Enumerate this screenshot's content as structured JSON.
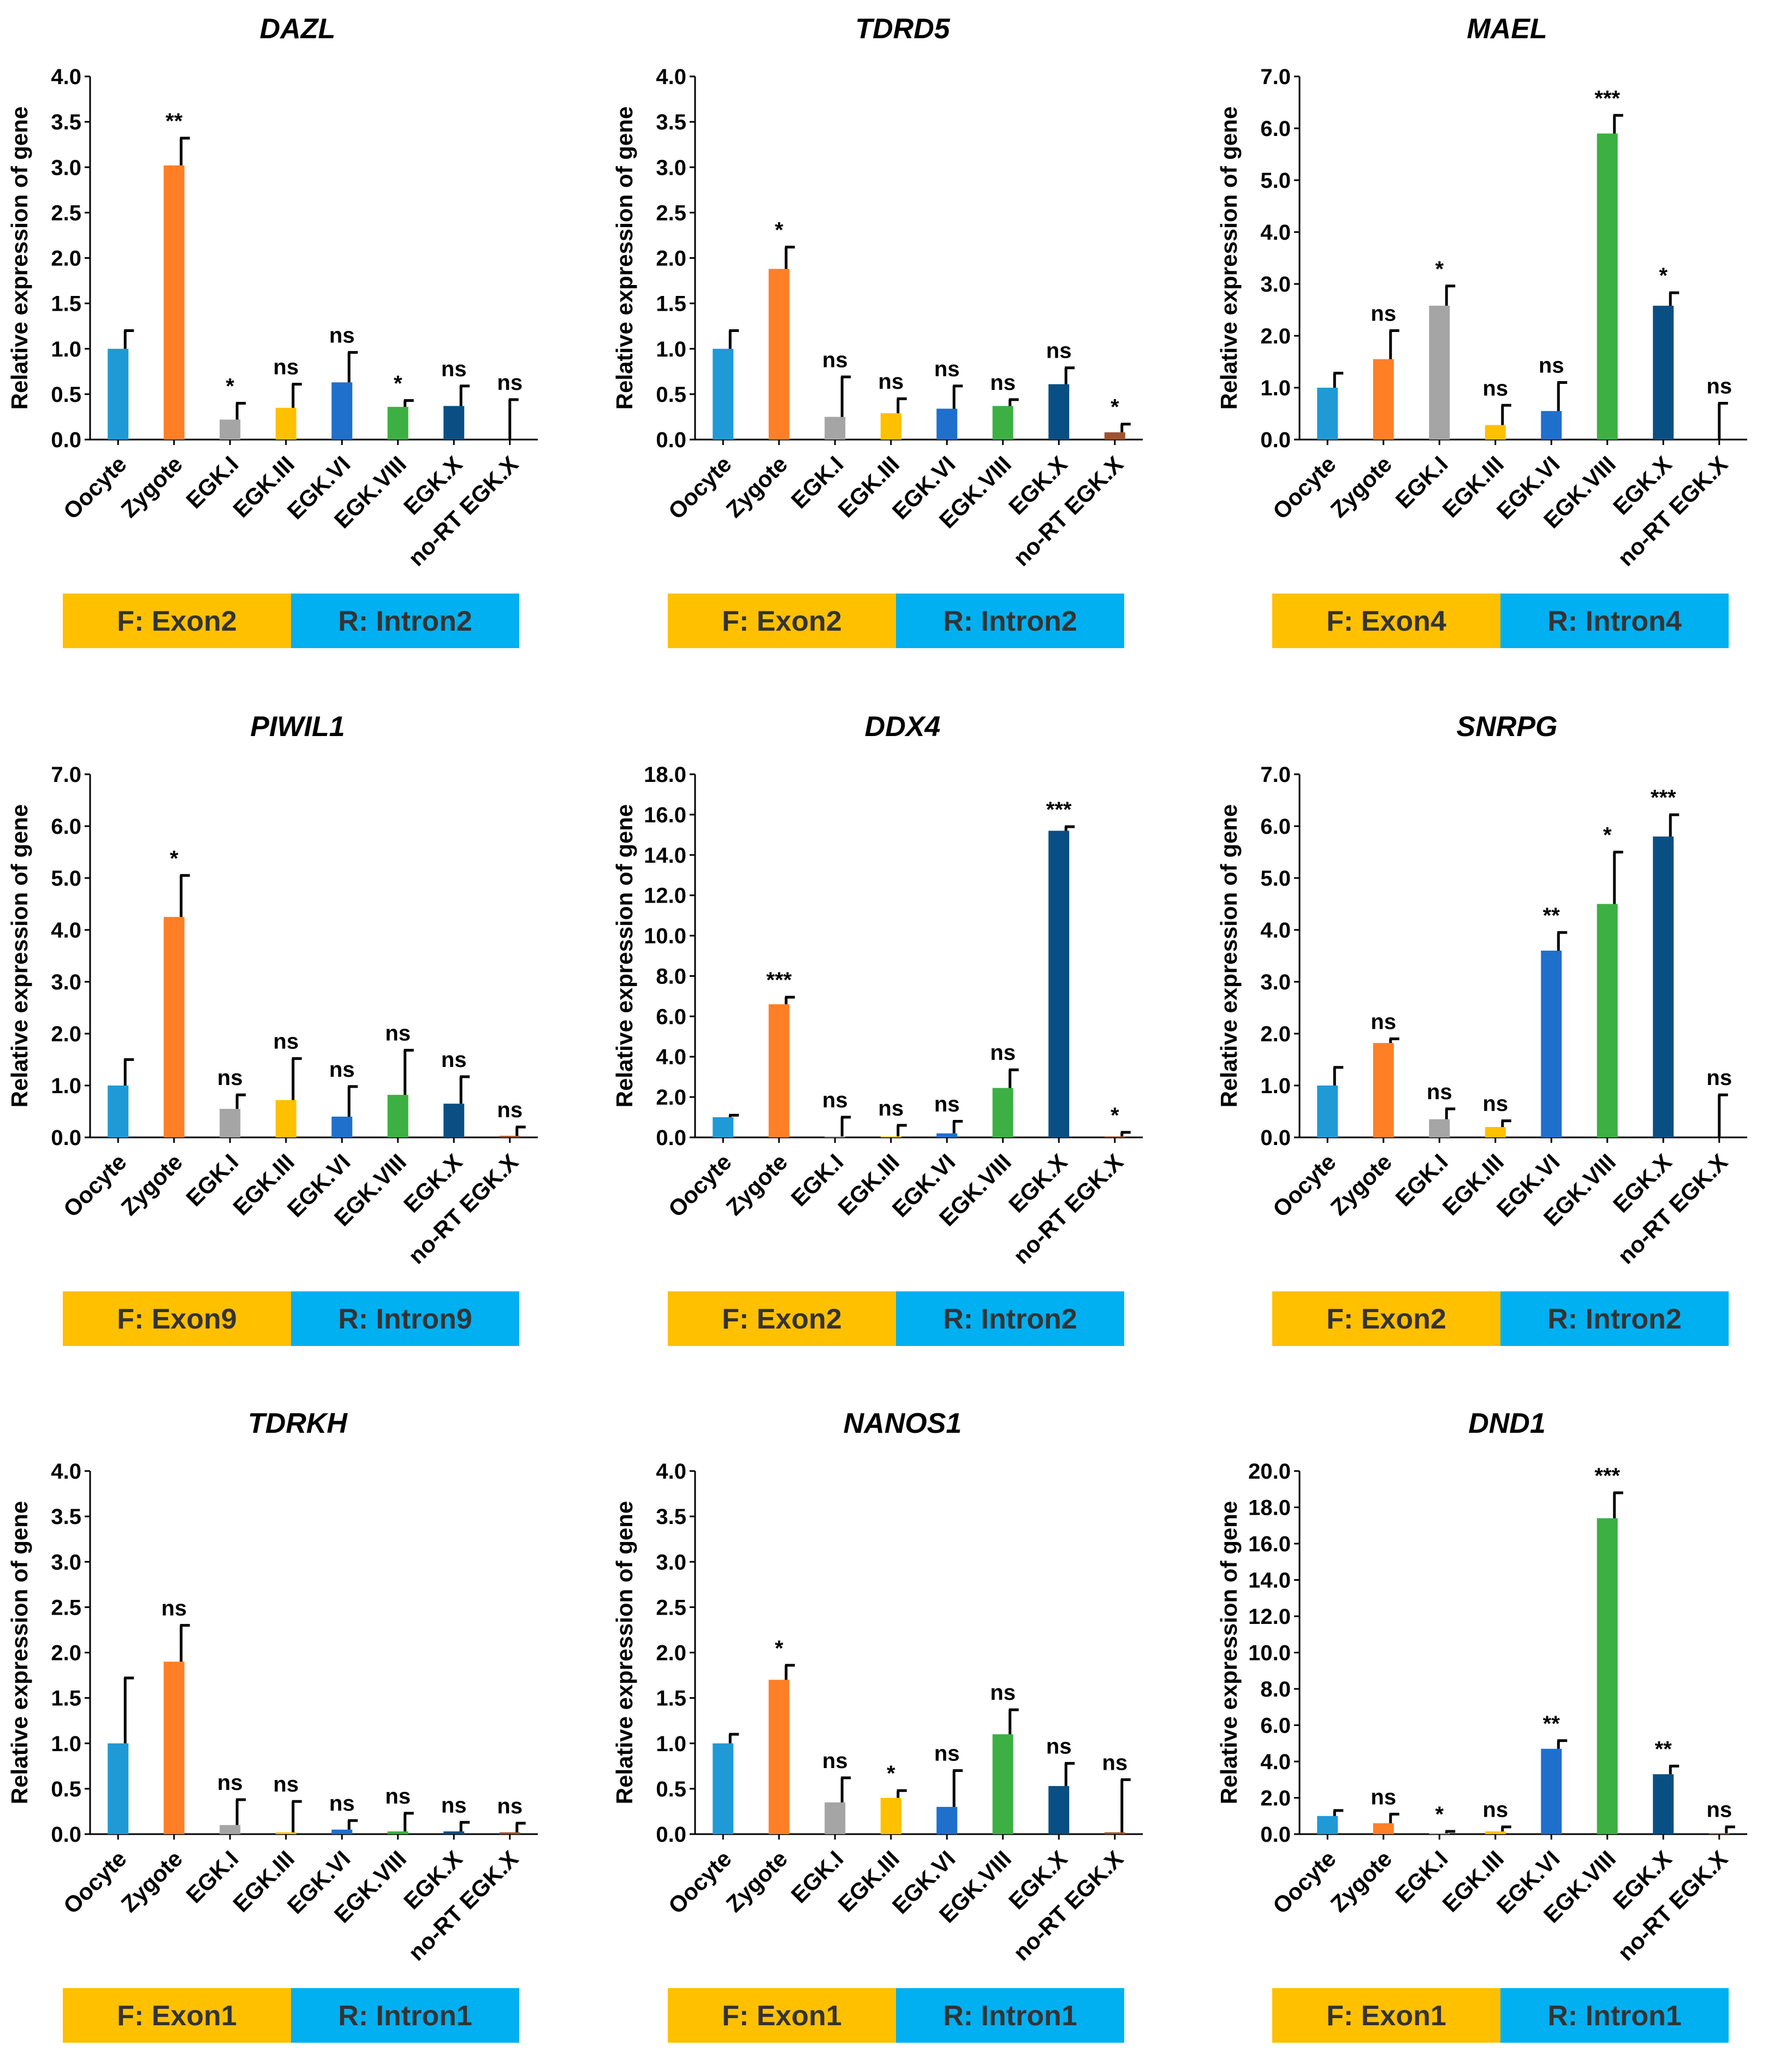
{
  "colors": {
    "Oocyte": "#1f9ad6",
    "Zygote": "#ff7f27",
    "EGK.I": "#a5a5a5",
    "EGK.III": "#ffc000",
    "EGK.VI": "#1f6fcc",
    "EGK.VIII": "#3cb043",
    "EGK.X": "#0a4f84",
    "no-RT EGK.X": "#a0522d",
    "forward": "#ffc000",
    "reverse": "#00b0f0"
  },
  "chart_data": [
    {
      "type": "bar",
      "title": "DAZL",
      "ylabel": "Relative expression of gene",
      "ylim": [
        0,
        4.0
      ],
      "yticks": [
        "0.0",
        "0.5",
        "1.0",
        "1.5",
        "2.0",
        "2.5",
        "3.0",
        "3.5",
        "4.0"
      ],
      "categories": [
        "Oocyte",
        "Zygote",
        "EGK.I",
        "EGK.III",
        "EGK.VI",
        "EGK.VIII",
        "EGK.X",
        "no-RT EGK.X"
      ],
      "values": [
        1.0,
        3.02,
        0.22,
        0.35,
        0.63,
        0.36,
        0.37,
        0.0
      ],
      "errors": [
        0.2,
        0.3,
        0.18,
        0.26,
        0.33,
        0.07,
        0.22,
        0.44
      ],
      "significance": [
        "",
        "**",
        "*",
        "ns",
        "ns",
        "*",
        "ns",
        "ns"
      ],
      "primer_forward": "F: Exon2",
      "primer_reverse": "R: Intron2"
    },
    {
      "type": "bar",
      "title": "TDRD5",
      "ylabel": "Relative expression of gene",
      "ylim": [
        0,
        4.0
      ],
      "yticks": [
        "0.0",
        "0.5",
        "1.0",
        "1.5",
        "2.0",
        "2.5",
        "3.0",
        "3.5",
        "4.0"
      ],
      "categories": [
        "Oocyte",
        "Zygote",
        "EGK.I",
        "EGK.III",
        "EGK.VI",
        "EGK.VIII",
        "EGK.X",
        "no-RT EGK.X"
      ],
      "values": [
        1.0,
        1.88,
        0.25,
        0.29,
        0.34,
        0.37,
        0.61,
        0.08
      ],
      "errors": [
        0.2,
        0.24,
        0.44,
        0.16,
        0.25,
        0.07,
        0.18,
        0.09
      ],
      "significance": [
        "",
        "*",
        "ns",
        "ns",
        "ns",
        "ns",
        "ns",
        "*"
      ],
      "primer_forward": "F: Exon2",
      "primer_reverse": "R: Intron2"
    },
    {
      "type": "bar",
      "title": "MAEL",
      "ylabel": "Relative expression of gene",
      "ylim": [
        0,
        7.0
      ],
      "yticks": [
        "0.0",
        "1.0",
        "2.0",
        "3.0",
        "4.0",
        "5.0",
        "6.0",
        "7.0"
      ],
      "categories": [
        "Oocyte",
        "Zygote",
        "EGK.I",
        "EGK.III",
        "EGK.VI",
        "EGK.VIII",
        "EGK.X",
        "no-RT EGK.X"
      ],
      "values": [
        1.0,
        1.55,
        2.58,
        0.28,
        0.55,
        5.9,
        2.58,
        0.0
      ],
      "errors": [
        0.28,
        0.55,
        0.38,
        0.38,
        0.55,
        0.35,
        0.25,
        0.7
      ],
      "significance": [
        "",
        "ns",
        "*",
        "ns",
        "ns",
        "***",
        "*",
        "ns"
      ],
      "primer_forward": "F: Exon4",
      "primer_reverse": "R: Intron4"
    },
    {
      "type": "bar",
      "title": "PIWIL1",
      "ylabel": "Relative expression of gene",
      "ylim": [
        0,
        7.0
      ],
      "yticks": [
        "0.0",
        "1.0",
        "2.0",
        "3.0",
        "4.0",
        "5.0",
        "6.0",
        "7.0"
      ],
      "categories": [
        "Oocyte",
        "Zygote",
        "EGK.I",
        "EGK.III",
        "EGK.VI",
        "EGK.VIII",
        "EGK.X",
        "no-RT EGK.X"
      ],
      "values": [
        1.0,
        4.25,
        0.55,
        0.72,
        0.4,
        0.82,
        0.65,
        0.03
      ],
      "errors": [
        0.5,
        0.8,
        0.27,
        0.8,
        0.58,
        0.86,
        0.52,
        0.17
      ],
      "significance": [
        "",
        "*",
        "ns",
        "ns",
        "ns",
        "ns",
        "ns",
        "ns"
      ],
      "primer_forward": "F: Exon9",
      "primer_reverse": "R: Intron9"
    },
    {
      "type": "bar",
      "title": "DDX4",
      "ylabel": "Relative expression of gene",
      "ylim": [
        0,
        18.0
      ],
      "yticks": [
        "0.0",
        "2.0",
        "4.0",
        "6.0",
        "8.0",
        "10.0",
        "12.0",
        "14.0",
        "16.0",
        "18.0"
      ],
      "categories": [
        "Oocyte",
        "Zygote",
        "EGK.I",
        "EGK.III",
        "EGK.VI",
        "EGK.VIII",
        "EGK.X",
        "no-RT EGK.X"
      ],
      "values": [
        1.0,
        6.6,
        0.05,
        0.05,
        0.2,
        2.45,
        15.2,
        0.05
      ],
      "errors": [
        0.1,
        0.35,
        0.95,
        0.55,
        0.6,
        0.9,
        0.2,
        0.2
      ],
      "significance": [
        "",
        "***",
        "ns",
        "ns",
        "ns",
        "ns",
        "***",
        "*"
      ],
      "primer_forward": "F: Exon2",
      "primer_reverse": "R: Intron2"
    },
    {
      "type": "bar",
      "title": "SNRPG",
      "ylabel": "Relative expression of gene",
      "ylim": [
        0,
        7.0
      ],
      "yticks": [
        "0.0",
        "1.0",
        "2.0",
        "3.0",
        "4.0",
        "5.0",
        "6.0",
        "7.0"
      ],
      "categories": [
        "Oocyte",
        "Zygote",
        "EGK.I",
        "EGK.III",
        "EGK.VI",
        "EGK.VIII",
        "EGK.X",
        "no-RT EGK.X"
      ],
      "values": [
        1.0,
        1.82,
        0.35,
        0.2,
        3.6,
        4.5,
        5.8,
        0.0
      ],
      "errors": [
        0.35,
        0.08,
        0.2,
        0.12,
        0.35,
        1.0,
        0.42,
        0.82
      ],
      "significance": [
        "",
        "ns",
        "ns",
        "ns",
        "**",
        "*",
        "***",
        "ns"
      ],
      "primer_forward": "F: Exon2",
      "primer_reverse": "R: Intron2"
    },
    {
      "type": "bar",
      "title": "TDRKH",
      "ylabel": "Relative expression of gene",
      "ylim": [
        0,
        4.0
      ],
      "yticks": [
        "0.0",
        "0.5",
        "1.0",
        "1.5",
        "2.0",
        "2.5",
        "3.0",
        "3.5",
        "4.0"
      ],
      "categories": [
        "Oocyte",
        "Zygote",
        "EGK.I",
        "EGK.III",
        "EGK.VI",
        "EGK.VIII",
        "EGK.X",
        "no-RT EGK.X"
      ],
      "values": [
        1.0,
        1.9,
        0.1,
        0.02,
        0.05,
        0.03,
        0.03,
        0.02
      ],
      "errors": [
        0.72,
        0.4,
        0.28,
        0.34,
        0.1,
        0.2,
        0.1,
        0.1
      ],
      "significance": [
        "",
        "ns",
        "ns",
        "ns",
        "ns",
        "ns",
        "ns",
        "ns"
      ],
      "primer_forward": "F: Exon1",
      "primer_reverse": "R: Intron1"
    },
    {
      "type": "bar",
      "title": "NANOS1",
      "ylabel": "Relative expression of gene",
      "ylim": [
        0,
        4.0
      ],
      "yticks": [
        "0.0",
        "0.5",
        "1.0",
        "1.5",
        "2.0",
        "2.5",
        "3.0",
        "3.5",
        "4.0"
      ],
      "categories": [
        "Oocyte",
        "Zygote",
        "EGK.I",
        "EGK.III",
        "EGK.VI",
        "EGK.VIII",
        "EGK.X",
        "no-RT EGK.X"
      ],
      "values": [
        1.0,
        1.7,
        0.35,
        0.4,
        0.3,
        1.1,
        0.53,
        0.02
      ],
      "errors": [
        0.1,
        0.16,
        0.27,
        0.08,
        0.4,
        0.27,
        0.25,
        0.58
      ],
      "significance": [
        "",
        "*",
        "ns",
        "*",
        "ns",
        "ns",
        "ns",
        "ns"
      ],
      "primer_forward": "F: Exon1",
      "primer_reverse": "R: Intron1"
    },
    {
      "type": "bar",
      "title": "DND1",
      "ylabel": "Relative expression of gene",
      "ylim": [
        0,
        20.0
      ],
      "yticks": [
        "0.0",
        "2.0",
        "4.0",
        "6.0",
        "8.0",
        "10.0",
        "12.0",
        "14.0",
        "16.0",
        "18.0",
        "20.0"
      ],
      "categories": [
        "Oocyte",
        "Zygote",
        "EGK.I",
        "EGK.III",
        "EGK.VI",
        "EGK.VIII",
        "EGK.X",
        "no-RT EGK.X"
      ],
      "values": [
        1.0,
        0.6,
        0.05,
        0.15,
        4.7,
        17.4,
        3.3,
        0.05
      ],
      "errors": [
        0.3,
        0.5,
        0.1,
        0.25,
        0.45,
        1.4,
        0.45,
        0.35
      ],
      "significance": [
        "",
        "ns",
        "*",
        "ns",
        "**",
        "***",
        "**",
        "ns"
      ],
      "primer_forward": "F: Exon1",
      "primer_reverse": "R: Intron1"
    }
  ]
}
